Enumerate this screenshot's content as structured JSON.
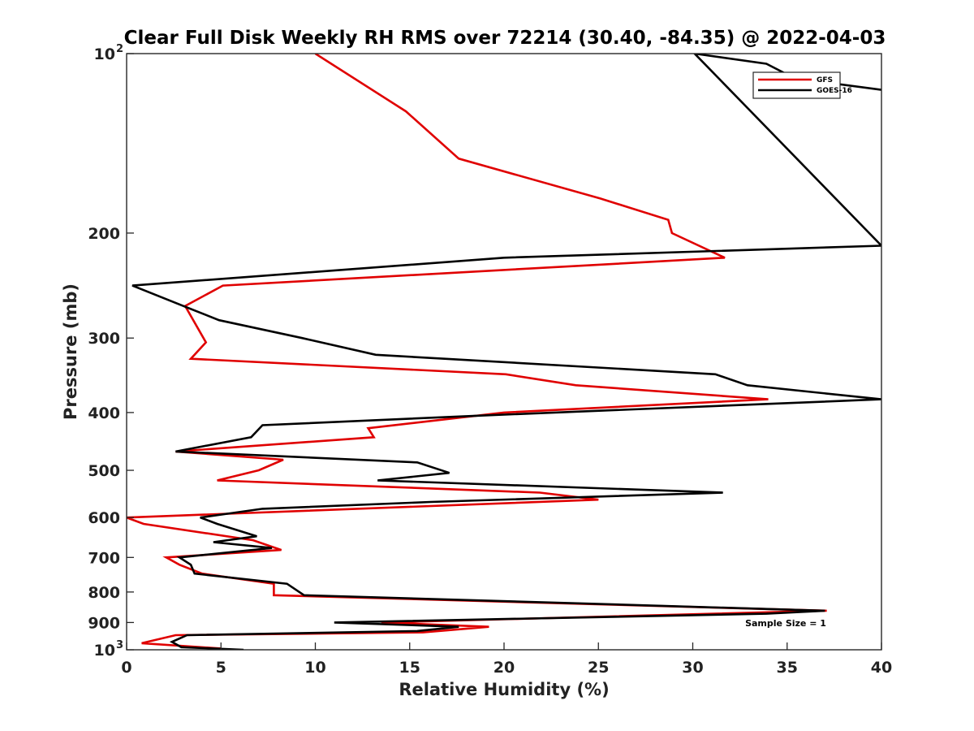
{
  "chart_data": {
    "type": "line",
    "title": "Clear Full Disk Weekly RH RMS over 72214 (30.40, -84.35) @ 2022-04-03",
    "xlabel": "Relative Humidity (%)",
    "ylabel": "Pressure (mb)",
    "xlim": [
      0,
      40
    ],
    "ylim": [
      100,
      1000
    ],
    "yscale": "log",
    "y_reversed": true,
    "x_ticks": [
      0,
      5,
      10,
      15,
      20,
      25,
      30,
      35,
      40
    ],
    "x_tick_labels": [
      "0",
      "5",
      "10",
      "15",
      "20",
      "25",
      "30",
      "35",
      "40"
    ],
    "y_ticks": [
      200,
      300,
      400,
      500,
      600,
      700,
      800,
      900
    ],
    "y_tick_labels": [
      "200",
      "300",
      "400",
      "500",
      "600",
      "700",
      "800",
      "900"
    ],
    "y_end_labels": {
      "top": {
        "base": "10",
        "exp": "2"
      },
      "bottom": {
        "base": "10",
        "exp": "3"
      }
    },
    "grid": false,
    "legend_position": "top-right",
    "annotation": "Sample Size = 1",
    "series": [
      {
        "name": "GFS",
        "color": "#e00000",
        "points": [
          [
            10.0,
            100
          ],
          [
            14.8,
            125
          ],
          [
            17.6,
            150
          ],
          [
            25.1,
            175
          ],
          [
            28.7,
            190
          ],
          [
            28.9,
            200
          ],
          [
            31.7,
            220
          ],
          [
            5.1,
            245
          ],
          [
            3.1,
            265
          ],
          [
            4.2,
            305
          ],
          [
            3.4,
            325
          ],
          [
            20.1,
            345
          ],
          [
            23.8,
            360
          ],
          [
            34.0,
            380
          ],
          [
            20.0,
            400
          ],
          [
            12.8,
            425
          ],
          [
            13.1,
            440
          ],
          [
            2.6,
            465
          ],
          [
            8.3,
            480
          ],
          [
            7.0,
            500
          ],
          [
            4.8,
            520
          ],
          [
            21.9,
            545
          ],
          [
            25.0,
            560
          ],
          [
            0.0,
            600
          ],
          [
            0.9,
            615
          ],
          [
            6.7,
            655
          ],
          [
            8.2,
            680
          ],
          [
            2.1,
            700
          ],
          [
            2.8,
            720
          ],
          [
            4.0,
            745
          ],
          [
            7.8,
            775
          ],
          [
            7.8,
            810
          ],
          [
            37.1,
            860
          ],
          [
            13.5,
            900
          ],
          [
            19.2,
            915
          ],
          [
            15.7,
            935
          ],
          [
            2.6,
            945
          ],
          [
            0.8,
            975
          ],
          [
            5.0,
            995
          ]
        ]
      },
      {
        "name": "GOES-16",
        "color": "#000000",
        "points": [
          [
            40.0,
            115
          ],
          [
            35.4,
            110
          ],
          [
            33.9,
            104
          ],
          [
            30.1,
            100
          ],
          [
            40.0,
            210
          ],
          [
            20.0,
            220
          ],
          [
            0.3,
            245
          ],
          [
            3.0,
            265
          ],
          [
            4.9,
            280
          ],
          [
            9.3,
            300
          ],
          [
            13.2,
            320
          ],
          [
            31.2,
            345
          ],
          [
            32.9,
            360
          ],
          [
            40.0,
            380
          ],
          [
            18.5,
            405
          ],
          [
            7.2,
            420
          ],
          [
            6.6,
            440
          ],
          [
            2.6,
            465
          ],
          [
            15.4,
            485
          ],
          [
            17.1,
            505
          ],
          [
            13.3,
            520
          ],
          [
            31.6,
            545
          ],
          [
            16.1,
            565
          ],
          [
            7.2,
            580
          ],
          [
            3.9,
            600
          ],
          [
            4.8,
            615
          ],
          [
            6.9,
            645
          ],
          [
            4.6,
            660
          ],
          [
            7.7,
            675
          ],
          [
            2.8,
            700
          ],
          [
            3.4,
            720
          ],
          [
            3.6,
            745
          ],
          [
            8.5,
            775
          ],
          [
            9.4,
            810
          ],
          [
            37.0,
            860
          ],
          [
            33.9,
            870
          ],
          [
            11.0,
            900
          ],
          [
            17.6,
            915
          ],
          [
            15.4,
            930
          ],
          [
            3.2,
            945
          ],
          [
            2.4,
            970
          ],
          [
            2.9,
            990
          ],
          [
            6.2,
            1000
          ]
        ]
      }
    ]
  }
}
